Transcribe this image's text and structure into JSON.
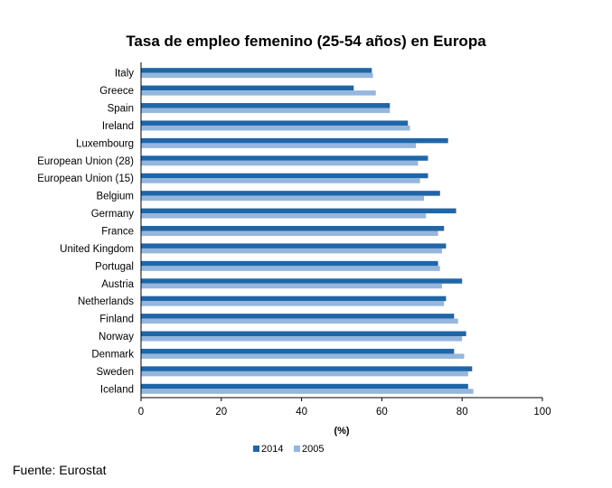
{
  "chart_data": {
    "type": "bar",
    "orientation": "horizontal",
    "title": "Tasa de empleo femenino (25-54 años) en Europa",
    "xlabel": "(%)",
    "ylabel": "",
    "xlim": [
      0,
      100
    ],
    "xticks": [
      0,
      20,
      40,
      60,
      80,
      100
    ],
    "grid": false,
    "legend_position": "bottom-left",
    "categories": [
      "Italy",
      "Greece",
      "Spain",
      "Ireland",
      "Luxembourg",
      "European Union (28)",
      "European Union (15)",
      "Belgium",
      "Germany",
      "France",
      "United Kingdom",
      "Portugal",
      "Austria",
      "Netherlands",
      "Finland",
      "Norway",
      "Denmark",
      "Sweden",
      "Iceland"
    ],
    "series": [
      {
        "name": "2014",
        "color": "#1f66a8",
        "values": [
          57.5,
          53,
          62,
          66.5,
          76.5,
          71.5,
          71.5,
          74.5,
          78.5,
          75.5,
          76,
          74,
          80,
          76,
          78,
          81,
          78,
          82.5,
          81.5
        ]
      },
      {
        "name": "2005",
        "color": "#95b6dd",
        "values": [
          57.8,
          58.5,
          62,
          67,
          68.5,
          69,
          69.5,
          70.5,
          71,
          74,
          75,
          74.5,
          75,
          75.5,
          79,
          80,
          80.5,
          81.5,
          82.8
        ]
      }
    ]
  },
  "source_note": "Fuente: Eurostat"
}
